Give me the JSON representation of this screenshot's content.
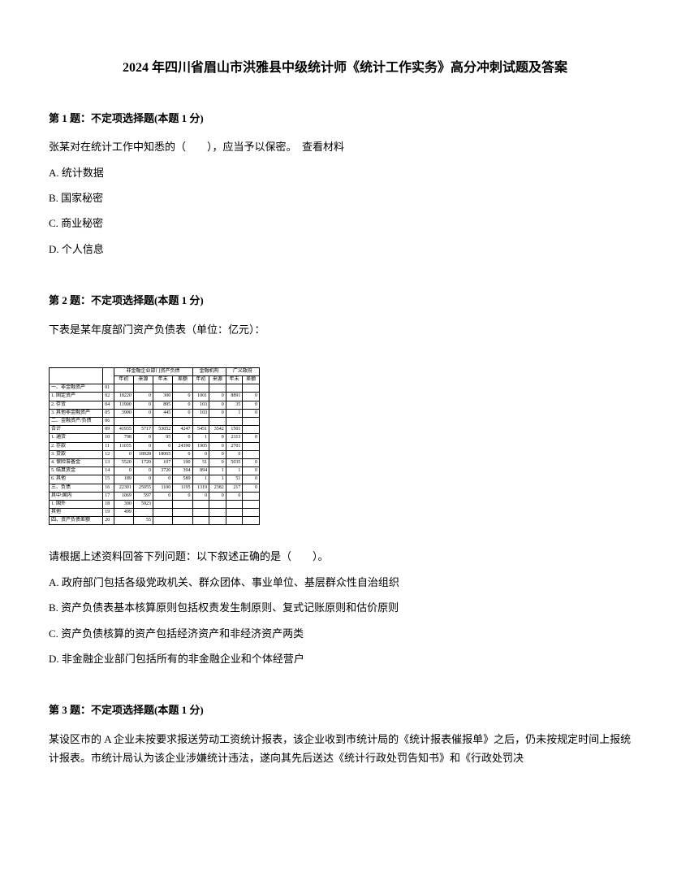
{
  "title": "2024 年四川省眉山市洪雅县中级统计师《统计工作实务》高分冲刺试题及答案",
  "q1": {
    "header": "第 1 题：不定项选择题(本题 1 分)",
    "text": "张某对在统计工作中知悉的（　　），应当予以保密。　查看材料",
    "optA": "A. 统计数据",
    "optB": "B. 国家秘密",
    "optC": "C. 商业秘密",
    "optD": "D. 个人信息"
  },
  "q2": {
    "header": "第 2 题：不定项选择题(本题 1 分)",
    "text": "下表是某年度部门资产负债表（单位：亿元）：",
    "followup": "请根据上述资料回答下列问题：以下叙述正确的是（　　）。",
    "optA": "A. 政府部门包括各级党政机关、群众团体、事业单位、基层群众性自治组织",
    "optB": "B. 资产负债表基本核算原则包括权责发生制原则、复式记账原则和估价原则",
    "optC": "C. 资产负债核算的资产包括经济资产和非经济资产两类",
    "optD": "D. 非金融企业部门包括所有的非金融企业和个体经营户"
  },
  "q3": {
    "header": "第 3 题：不定项选择题(本题 1 分)",
    "text": "某设区市的 A 企业未按要求报送劳动工资统计报表，该企业收到市统计局的《统计报表催报单》之后，仍未按规定时间上报统计报表。市统计局认为该企业涉嫌统计违法，遂向其先后送达《统计行政处罚告知书》和《行政处罚决"
  },
  "table": {
    "hdr1": "非金融企业部门资产负债",
    "hdr2": "金融机构",
    "hdr3": "广义政府",
    "sub_year": "年初",
    "sub_use": "来源",
    "sub_yearend": "年末",
    "sub_bal": "差额",
    "rows": [
      {
        "label": "一、非金融资产",
        "code": "01",
        "c1": "",
        "c2": "",
        "c3": "",
        "c4": "",
        "c5": "",
        "c6": "",
        "c7": "",
        "c8": ""
      },
      {
        "label": "1. 固定资产",
        "code": "02",
        "c1": "18220",
        "c2": "0",
        "c3": "300",
        "c4": "0",
        "c5": "1001",
        "c6": "0",
        "c7": "8891",
        "c8": "0"
      },
      {
        "label": "2. 存货",
        "code": "04",
        "c1": "11900",
        "c2": "0",
        "c3": "895",
        "c4": "0",
        "c5": "103",
        "c6": "0",
        "c7": "35",
        "c8": "0"
      },
      {
        "label": "3. 其他非金融资产",
        "code": "05",
        "c1": "3900",
        "c2": "0",
        "c3": "445",
        "c4": "0",
        "c5": "103",
        "c6": "0",
        "c7": "1",
        "c8": "0"
      },
      {
        "label": "二、金融资产/负债",
        "code": "06",
        "c1": "",
        "c2": "",
        "c3": "",
        "c4": "",
        "c5": "",
        "c6": "",
        "c7": "",
        "c8": ""
      },
      {
        "label": "合计",
        "code": "09",
        "c1": "41935",
        "c2": "5717",
        "c3": "53052",
        "c4": "4247",
        "c5": "5451",
        "c6": "3542",
        "c7": "1501",
        "c8": ""
      },
      {
        "label": "1. 通货",
        "code": "10",
        "c1": "798",
        "c2": "0",
        "c3": "95",
        "c4": "0",
        "c5": "1",
        "c6": "0",
        "c7": "2113",
        "c8": "0"
      },
      {
        "label": "2. 存款",
        "code": "11",
        "c1": "11035",
        "c2": "0",
        "c3": "0",
        "c4": "24390",
        "c5": "1905",
        "c6": "0",
        "c7": "2701",
        "c8": ""
      },
      {
        "label": "3. 贷款",
        "code": "12",
        "c1": "0",
        "c2": "18928",
        "c3": "18065",
        "c4": "0",
        "c5": "0",
        "c6": "0",
        "c7": "0",
        "c8": ""
      },
      {
        "label": "4. 保险准备金",
        "code": "13",
        "c1": "5520",
        "c2": "1720",
        "c3": "107",
        "c4": "190",
        "c5": "51",
        "c6": "0",
        "c7": "5035",
        "c8": "0"
      },
      {
        "label": "5. 结算资金",
        "code": "14",
        "c1": "0",
        "c2": "0",
        "c3": "3720",
        "c4": "394",
        "c5": "894",
        "c6": "1",
        "c7": "1",
        "c8": "0"
      },
      {
        "label": "6. 其他",
        "code": "15",
        "c1": "189",
        "c2": "0",
        "c3": "0",
        "c4": "589",
        "c5": "1",
        "c6": "1",
        "c7": "51",
        "c8": "0"
      },
      {
        "label": "三、负债",
        "code": "16",
        "c1": "22301",
        "c2": "25055",
        "c3": "1100",
        "c4": "1195",
        "c5": "1319",
        "c6": "2382",
        "c7": "217",
        "c8": "0"
      },
      {
        "label": "其中:国内",
        "code": "17",
        "c1": "1069",
        "c2": "597",
        "c3": "0",
        "c4": "0",
        "c5": "0",
        "c6": "0",
        "c7": "0",
        "c8": ""
      },
      {
        "label": "1. 国外",
        "code": "18",
        "c1": "300",
        "c2": "5923",
        "c3": "",
        "c4": "",
        "c5": "",
        "c6": "",
        "c7": "",
        "c8": ""
      },
      {
        "label": "其他",
        "code": "19",
        "c1": "499",
        "c2": "",
        "c3": "",
        "c4": "",
        "c5": "",
        "c6": "",
        "c7": "",
        "c8": ""
      },
      {
        "label": "四、资产负债差额",
        "code": "20",
        "c1": "",
        "c2": "55",
        "c3": "",
        "c4": "",
        "c5": "",
        "c6": "",
        "c7": "",
        "c8": ""
      }
    ]
  }
}
